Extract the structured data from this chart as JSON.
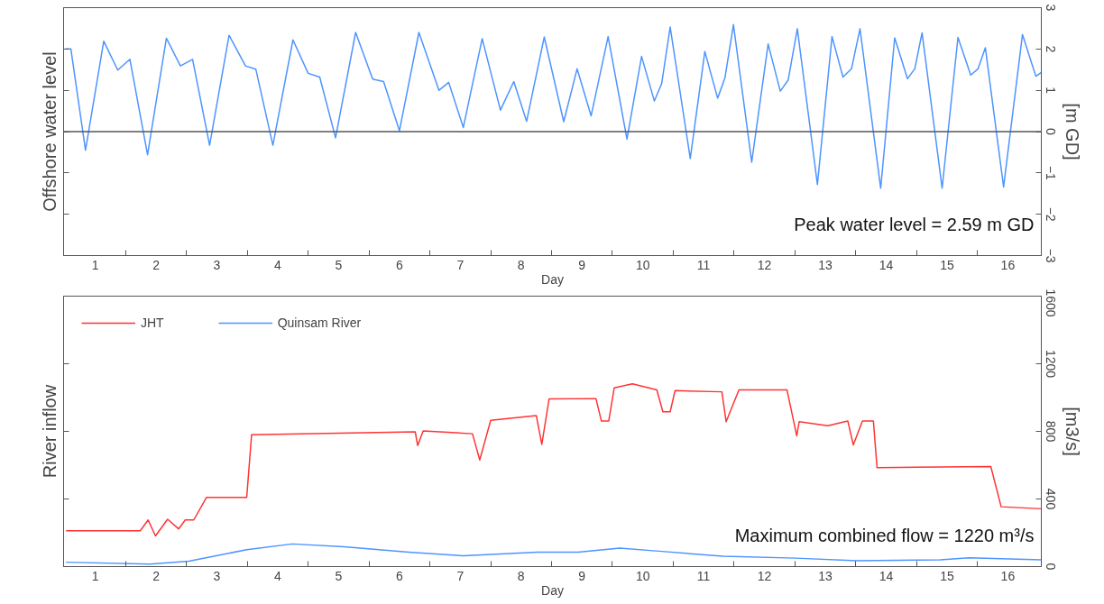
{
  "chart_data": [
    {
      "type": "line",
      "ylabel": "Offshore water level",
      "y2label": "[m GD]",
      "xlabel": "Day",
      "xlim": [
        0.48,
        16.55
      ],
      "ylim": [
        -3,
        3
      ],
      "yticks": [
        -3,
        -2,
        -1,
        0,
        1,
        2,
        3
      ],
      "xticks": [
        1,
        2,
        3,
        4,
        5,
        6,
        7,
        8,
        9,
        10,
        11,
        12,
        13,
        14,
        15,
        16,
        {
          "value": 1.5,
          "label": null
        },
        {
          "value": 2.5,
          "label": null
        },
        {
          "value": 3.5,
          "label": null
        },
        {
          "value": 4.5,
          "label": null
        },
        {
          "value": 5.5,
          "label": null
        },
        {
          "value": 6.5,
          "label": null
        },
        {
          "value": 7.5,
          "label": null
        },
        {
          "value": 8.5,
          "label": null
        },
        {
          "value": 9.5,
          "label": null
        },
        {
          "value": 10.5,
          "label": null
        },
        {
          "value": 11.5,
          "label": null
        },
        {
          "value": 12.5,
          "label": null
        },
        {
          "value": 13.5,
          "label": null
        },
        {
          "value": 14.5,
          "label": null
        },
        {
          "value": 15.5,
          "label": null
        }
      ],
      "grid": false,
      "legend": false,
      "ref_lines": [
        {
          "axis": "y",
          "value": 0,
          "color": "#555555"
        }
      ],
      "annotations": [
        "Peak water level = 2.59 m GD"
      ],
      "series": [
        {
          "color": "#4d94ff",
          "x": [
            0.51,
            0.6,
            0.84,
            1.14,
            1.37,
            1.57,
            1.86,
            2.17,
            2.4,
            2.6,
            2.88,
            3.2,
            3.47,
            3.64,
            3.92,
            4.25,
            4.5,
            4.69,
            4.95,
            5.28,
            5.56,
            5.74,
            6.0,
            6.32,
            6.65,
            6.81,
            7.05,
            7.36,
            7.66,
            7.88,
            8.09,
            8.38,
            8.7,
            8.92,
            9.15,
            9.43,
            9.74,
            9.98,
            10.19,
            10.31,
            10.45,
            10.78,
            11.02,
            11.23,
            11.35,
            11.49,
            11.79,
            12.06,
            12.26,
            12.39,
            12.54,
            12.87,
            13.11,
            13.29,
            13.43,
            13.57,
            13.91,
            14.14,
            14.35,
            14.47,
            14.59,
            14.92,
            15.18,
            15.39,
            15.51,
            15.63,
            15.93,
            16.24,
            16.46,
            16.55
          ],
          "values": [
            2.0,
            2.0,
            -0.45,
            2.19,
            1.49,
            1.75,
            -0.56,
            2.26,
            1.59,
            1.75,
            -0.33,
            2.33,
            1.59,
            1.51,
            -0.33,
            2.22,
            1.41,
            1.32,
            -0.15,
            2.4,
            1.27,
            1.21,
            0.02,
            2.4,
            1.0,
            1.19,
            0.1,
            2.25,
            0.52,
            1.21,
            0.25,
            2.29,
            0.24,
            1.52,
            0.38,
            2.3,
            -0.18,
            1.82,
            0.74,
            1.16,
            2.53,
            -0.65,
            1.94,
            0.81,
            1.3,
            2.59,
            -0.74,
            2.12,
            0.98,
            1.25,
            2.49,
            -1.28,
            2.3,
            1.32,
            1.52,
            2.49,
            -1.37,
            2.27,
            1.28,
            1.52,
            2.39,
            -1.37,
            2.28,
            1.37,
            1.52,
            2.03,
            -1.34,
            2.35,
            1.34,
            1.43
          ]
        }
      ]
    },
    {
      "type": "line",
      "ylabel": "River inflow",
      "y2label": "[m3/s]",
      "xlabel": "Day",
      "xlim": [
        0.48,
        16.55
      ],
      "ylim": [
        0,
        1600
      ],
      "yticks": [
        0,
        400,
        800,
        1200,
        1600
      ],
      "xticks": [
        1,
        2,
        3,
        4,
        5,
        6,
        7,
        8,
        9,
        10,
        11,
        12,
        13,
        14,
        15,
        16,
        {
          "value": 1.5,
          "label": null
        },
        {
          "value": 2.5,
          "label": null
        },
        {
          "value": 3.5,
          "label": null
        },
        {
          "value": 4.5,
          "label": null
        },
        {
          "value": 5.5,
          "label": null
        },
        {
          "value": 6.5,
          "label": null
        },
        {
          "value": 7.5,
          "label": null
        },
        {
          "value": 8.5,
          "label": null
        },
        {
          "value": 9.5,
          "label": null
        },
        {
          "value": 10.5,
          "label": null
        },
        {
          "value": 11.5,
          "label": null
        },
        {
          "value": 12.5,
          "label": null
        },
        {
          "value": 13.5,
          "label": null
        },
        {
          "value": 14.5,
          "label": null
        },
        {
          "value": 15.5,
          "label": null
        }
      ],
      "grid": false,
      "legend": "top left",
      "annotations": [
        "Maximum combined flow = 1220 m³/s"
      ],
      "series": [
        {
          "name": "JHT",
          "color": "#ff3333",
          "x": [
            0.52,
            1.74,
            1.87,
            1.99,
            2.19,
            2.37,
            2.48,
            2.62,
            2.83,
            3.49,
            3.57,
            6.26,
            6.3,
            6.39,
            7.2,
            7.32,
            7.5,
            8.25,
            8.34,
            8.46,
            9.23,
            9.32,
            9.44,
            9.53,
            9.83,
            10.23,
            10.33,
            10.45,
            10.53,
            11.3,
            11.37,
            11.58,
            12.37,
            12.53,
            12.57,
            13.04,
            13.37,
            13.46,
            13.61,
            13.79,
            13.85,
            15.72,
            15.89,
            16.55
          ],
          "values": [
            212,
            212,
            276,
            181,
            280,
            223,
            276,
            276,
            410,
            410,
            780,
            797,
            716,
            803,
            786,
            631,
            865,
            893,
            723,
            992,
            994,
            861,
            861,
            1057,
            1081,
            1045,
            916,
            916,
            1041,
            1034,
            857,
            1045,
            1045,
            774,
            857,
            833,
            861,
            720,
            861,
            861,
            585,
            592,
            354,
            342
          ]
        },
        {
          "name": "Quinsam River",
          "color": "#4d94ff",
          "x": [
            0.52,
            1.9,
            2.54,
            3.49,
            4.24,
            5.09,
            6.15,
            7.05,
            8.27,
            8.94,
            9.62,
            10.31,
            11.32,
            12.51,
            13.52,
            14.89,
            15.36,
            16.55
          ],
          "values": [
            26,
            15,
            32,
            100,
            134,
            117,
            85,
            64,
            85,
            85,
            109,
            90,
            61,
            50,
            35,
            40,
            52,
            40
          ]
        }
      ]
    }
  ]
}
